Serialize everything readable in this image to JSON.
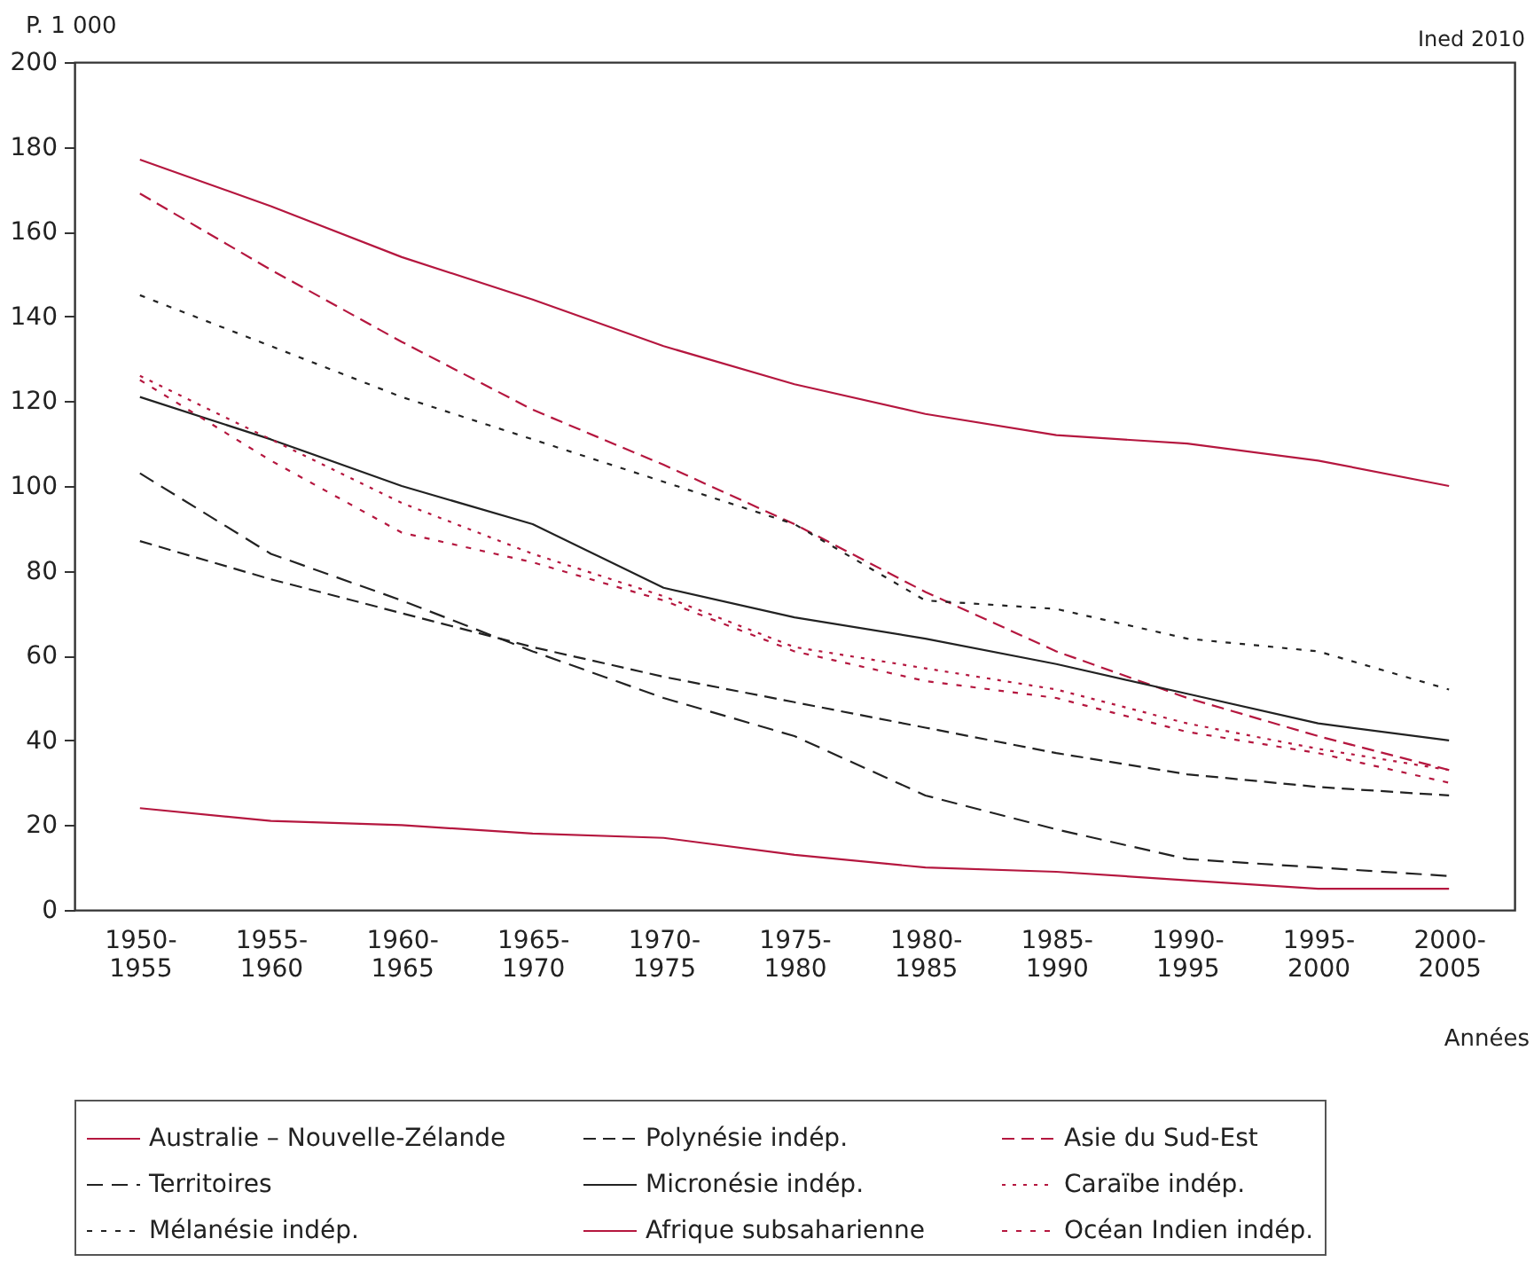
{
  "chart_data": {
    "type": "line",
    "ylabel": "P. 1 000",
    "xlabel": "Années",
    "annotations": [
      "Ined 2010"
    ],
    "categories": [
      "1950-1955",
      "1955-1960",
      "1960-1965",
      "1965-1970",
      "1970-1975",
      "1975-1980",
      "1980-1985",
      "1985-1990",
      "1990-1995",
      "1995-2000",
      "2000-2005"
    ],
    "ylim": [
      0,
      200
    ],
    "yticks": [
      0,
      20,
      40,
      60,
      80,
      100,
      120,
      140,
      160,
      180,
      200
    ],
    "grid": false,
    "legend": "bottom",
    "series": [
      {
        "name": "Australie – Nouvelle-Zélande",
        "color": "#b5173f",
        "line_style": "solid",
        "values": [
          24,
          21,
          20,
          18,
          17,
          13,
          10,
          9,
          7,
          5,
          5
        ]
      },
      {
        "name": "Polynésie indép.",
        "color": "#222222",
        "line_style": "dashed",
        "values": [
          87,
          78,
          70,
          62,
          55,
          49,
          43,
          37,
          32,
          29,
          27
        ]
      },
      {
        "name": "Asie du Sud-Est",
        "color": "#b5173f",
        "line_style": "dashed",
        "values": [
          169,
          151,
          134,
          118,
          105,
          91,
          75,
          61,
          50,
          41,
          33
        ]
      },
      {
        "name": "Territoires",
        "color": "#222222",
        "line_style": "dashed",
        "values": [
          103,
          84,
          73,
          61,
          50,
          41,
          27,
          19,
          12,
          10,
          8
        ]
      },
      {
        "name": "Micronésie indép.",
        "color": "#222222",
        "line_style": "solid",
        "values": [
          121,
          111,
          100,
          91,
          76,
          69,
          64,
          58,
          51,
          44,
          40
        ]
      },
      {
        "name": "Caraïbe indép.",
        "color": "#b5173f",
        "line_style": "dotted",
        "values": [
          126,
          111,
          96,
          84,
          74,
          62,
          57,
          52,
          44,
          38,
          33
        ]
      },
      {
        "name": "Mélanésie indép.",
        "color": "#222222",
        "line_style": "dotted",
        "values": [
          145,
          133,
          121,
          111,
          101,
          91,
          73,
          71,
          64,
          61,
          52
        ]
      },
      {
        "name": "Afrique subsaharienne",
        "color": "#b5173f",
        "line_style": "solid",
        "values": [
          177,
          166,
          154,
          144,
          133,
          124,
          117,
          112,
          110,
          106,
          100
        ]
      },
      {
        "name": "Océan Indien indép.",
        "color": "#b5173f",
        "line_style": "dotted",
        "values": [
          125,
          106,
          89,
          82,
          73,
          61,
          54,
          50,
          42,
          37,
          30
        ]
      }
    ]
  }
}
